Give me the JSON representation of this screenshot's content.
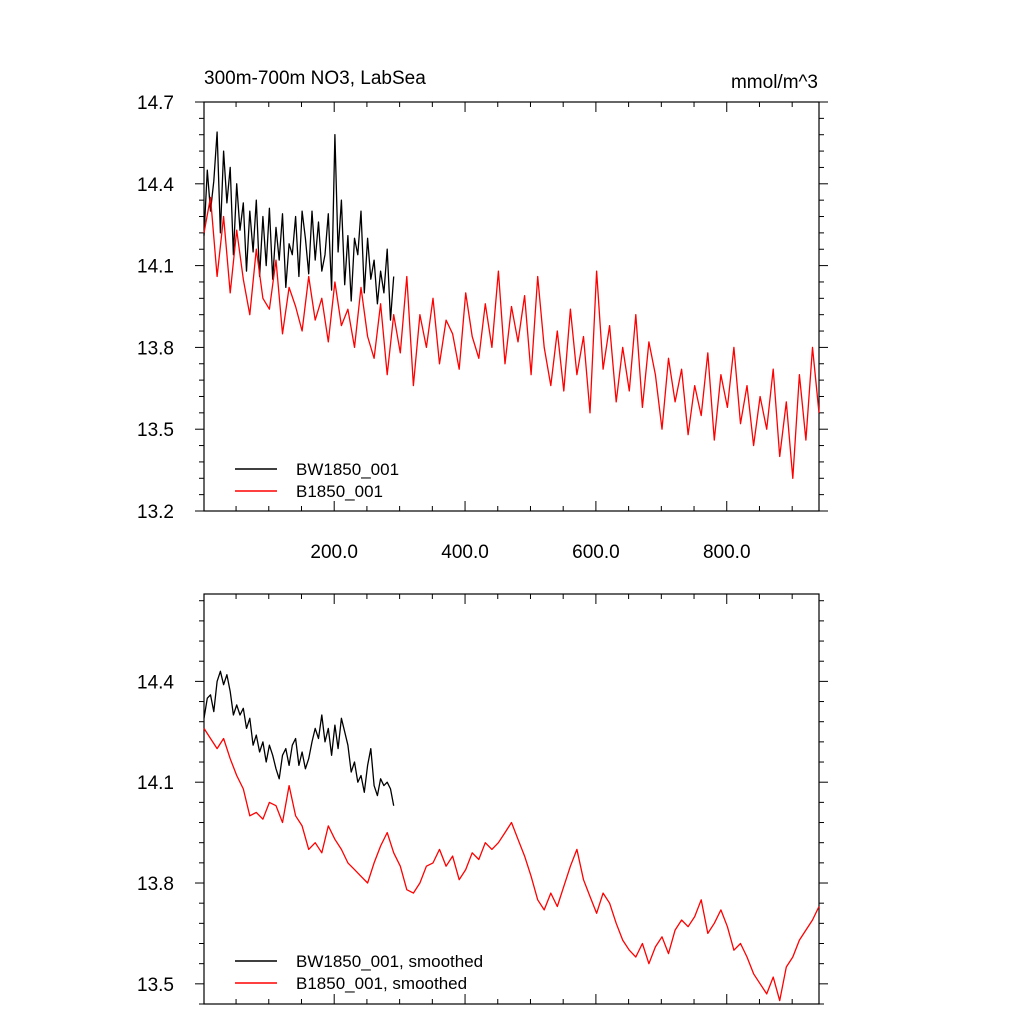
{
  "chart_data": [
    {
      "type": "line",
      "title": "300m-700m NO3, LabSea",
      "units": "mmol/m^3",
      "xlim": [
        1,
        941
      ],
      "ylim": [
        13.2,
        14.7
      ],
      "xticks": [
        200,
        400,
        600,
        800
      ],
      "xtick_labels": [
        "200.0",
        "400.0",
        "600.0",
        "800.0"
      ],
      "yticks": [
        13.2,
        13.5,
        13.8,
        14.1,
        14.4,
        14.7
      ],
      "ytick_labels": [
        "13.2",
        "13.5",
        "13.8",
        "14.1",
        "14.4",
        "14.7"
      ],
      "legend_position": "bottom-left",
      "series": [
        {
          "name": "BW1850_001",
          "color": "#000000",
          "x": [
            1,
            6,
            11,
            16,
            21,
            26,
            31,
            36,
            41,
            46,
            51,
            56,
            61,
            66,
            71,
            76,
            81,
            86,
            91,
            96,
            101,
            106,
            111,
            116,
            121,
            126,
            131,
            136,
            141,
            146,
            151,
            156,
            161,
            166,
            171,
            176,
            181,
            186,
            191,
            196,
            201,
            206,
            211,
            216,
            221,
            226,
            231,
            236,
            241,
            246,
            251,
            256,
            261,
            266,
            271,
            276,
            281,
            286,
            291
          ],
          "y": [
            14.21,
            14.45,
            14.3,
            14.41,
            14.59,
            14.22,
            14.52,
            14.33,
            14.46,
            14.14,
            14.4,
            14.23,
            14.33,
            14.08,
            14.3,
            14.15,
            14.34,
            14.06,
            14.28,
            14.1,
            14.31,
            14.05,
            14.24,
            14.12,
            14.29,
            14.02,
            14.18,
            14.14,
            14.28,
            14.06,
            14.3,
            14.2,
            14.07,
            14.3,
            14.12,
            14.26,
            14.08,
            14.14,
            14.29,
            14.01,
            14.58,
            14.15,
            14.34,
            14.03,
            14.21,
            13.97,
            14.2,
            14.14,
            14.3,
            14.0,
            14.2,
            14.05,
            14.12,
            13.96,
            14.08,
            14.0,
            14.16,
            13.9,
            14.06
          ]
        },
        {
          "name": "B1850_001",
          "color": "#ff0000",
          "x": [
            1,
            11,
            21,
            31,
            41,
            51,
            61,
            71,
            81,
            91,
            101,
            111,
            121,
            131,
            141,
            151,
            161,
            171,
            181,
            191,
            201,
            211,
            221,
            231,
            241,
            251,
            261,
            271,
            281,
            291,
            301,
            311,
            321,
            331,
            341,
            351,
            361,
            371,
            381,
            391,
            401,
            411,
            421,
            431,
            441,
            451,
            461,
            471,
            481,
            491,
            501,
            511,
            521,
            531,
            541,
            551,
            561,
            571,
            581,
            591,
            601,
            611,
            621,
            631,
            641,
            651,
            661,
            671,
            681,
            691,
            701,
            711,
            721,
            731,
            741,
            751,
            761,
            771,
            781,
            791,
            801,
            811,
            821,
            831,
            841,
            851,
            861,
            871,
            881,
            891,
            901,
            911,
            921,
            931,
            941
          ],
          "y": [
            14.22,
            14.35,
            14.06,
            14.28,
            14.0,
            14.23,
            14.05,
            13.92,
            14.16,
            13.98,
            13.94,
            14.12,
            13.85,
            14.02,
            13.95,
            13.86,
            14.06,
            13.9,
            13.98,
            13.82,
            14.04,
            13.88,
            13.94,
            13.8,
            14.02,
            13.84,
            13.76,
            13.96,
            13.7,
            13.92,
            13.78,
            14.06,
            13.66,
            13.92,
            13.8,
            13.98,
            13.74,
            13.9,
            13.85,
            13.72,
            14.0,
            13.84,
            13.76,
            13.96,
            13.8,
            14.08,
            13.74,
            13.95,
            13.82,
            13.99,
            13.7,
            14.06,
            13.8,
            13.66,
            13.86,
            13.64,
            13.94,
            13.7,
            13.84,
            13.56,
            14.08,
            13.72,
            13.88,
            13.6,
            13.8,
            13.64,
            13.92,
            13.58,
            13.82,
            13.7,
            13.5,
            13.76,
            13.6,
            13.72,
            13.48,
            13.66,
            13.55,
            13.78,
            13.46,
            13.7,
            13.58,
            13.8,
            13.52,
            13.66,
            13.44,
            13.62,
            13.5,
            13.72,
            13.4,
            13.6,
            13.32,
            13.7,
            13.46,
            13.8,
            13.56
          ]
        }
      ]
    },
    {
      "type": "line",
      "xlim": [
        1,
        941
      ],
      "ylim": [
        13.44,
        14.66
      ],
      "xticks": [
        200,
        400,
        600,
        800
      ],
      "yticks": [
        13.5,
        13.8,
        14.1,
        14.4
      ],
      "ytick_labels": [
        "13.5",
        "13.8",
        "14.1",
        "14.4"
      ],
      "legend_position": "bottom-left",
      "series": [
        {
          "name": "BW1850_001, smoothed",
          "color": "#000000",
          "x": [
            1,
            6,
            11,
            16,
            21,
            26,
            31,
            36,
            41,
            46,
            51,
            56,
            61,
            66,
            71,
            76,
            81,
            86,
            91,
            96,
            101,
            106,
            111,
            116,
            121,
            126,
            131,
            136,
            141,
            146,
            151,
            156,
            161,
            166,
            171,
            176,
            181,
            186,
            191,
            196,
            201,
            206,
            211,
            216,
            221,
            226,
            231,
            236,
            241,
            246,
            251,
            256,
            261,
            266,
            271,
            276,
            281,
            286,
            291
          ],
          "y": [
            14.29,
            14.35,
            14.36,
            14.31,
            14.4,
            14.43,
            14.39,
            14.42,
            14.37,
            14.3,
            14.33,
            14.3,
            14.32,
            14.26,
            14.29,
            14.21,
            14.24,
            14.19,
            14.22,
            14.16,
            14.21,
            14.18,
            14.14,
            14.11,
            14.18,
            14.2,
            14.15,
            14.21,
            14.23,
            14.15,
            14.19,
            14.14,
            14.17,
            14.22,
            14.26,
            14.23,
            14.3,
            14.22,
            14.26,
            14.18,
            14.27,
            14.2,
            14.29,
            14.25,
            14.21,
            14.13,
            14.16,
            14.1,
            14.12,
            14.07,
            14.15,
            14.2,
            14.09,
            14.06,
            14.11,
            14.09,
            14.1,
            14.08,
            14.03
          ]
        },
        {
          "name": "B1850_001, smoothed",
          "color": "#ff0000",
          "x": [
            1,
            11,
            21,
            31,
            41,
            51,
            61,
            71,
            81,
            91,
            101,
            111,
            121,
            131,
            141,
            151,
            161,
            171,
            181,
            191,
            201,
            211,
            221,
            231,
            241,
            251,
            261,
            271,
            281,
            291,
            301,
            311,
            321,
            331,
            341,
            351,
            361,
            371,
            381,
            391,
            401,
            411,
            421,
            431,
            441,
            451,
            461,
            471,
            481,
            491,
            501,
            511,
            521,
            531,
            541,
            551,
            561,
            571,
            581,
            591,
            601,
            611,
            621,
            631,
            641,
            651,
            661,
            671,
            681,
            691,
            701,
            711,
            721,
            731,
            741,
            751,
            761,
            771,
            781,
            791,
            801,
            811,
            821,
            831,
            841,
            851,
            861,
            871,
            881,
            891,
            901,
            911,
            921,
            931,
            941
          ],
          "y": [
            14.26,
            14.23,
            14.2,
            14.23,
            14.17,
            14.12,
            14.08,
            14.0,
            14.01,
            13.99,
            14.04,
            14.03,
            13.98,
            14.09,
            14.0,
            13.97,
            13.9,
            13.92,
            13.89,
            13.97,
            13.93,
            13.9,
            13.86,
            13.84,
            13.82,
            13.8,
            13.86,
            13.91,
            13.95,
            13.89,
            13.85,
            13.78,
            13.77,
            13.8,
            13.85,
            13.86,
            13.9,
            13.85,
            13.88,
            13.81,
            13.84,
            13.89,
            13.87,
            13.92,
            13.9,
            13.92,
            13.95,
            13.98,
            13.93,
            13.88,
            13.82,
            13.75,
            13.72,
            13.77,
            13.73,
            13.79,
            13.85,
            13.9,
            13.81,
            13.76,
            13.71,
            13.77,
            13.74,
            13.68,
            13.63,
            13.6,
            13.58,
            13.62,
            13.56,
            13.61,
            13.64,
            13.59,
            13.66,
            13.69,
            13.67,
            13.7,
            13.75,
            13.65,
            13.68,
            13.72,
            13.67,
            13.6,
            13.62,
            13.58,
            13.53,
            13.5,
            13.47,
            13.52,
            13.45,
            13.55,
            13.58,
            13.63,
            13.66,
            13.69,
            13.73
          ]
        }
      ]
    }
  ]
}
